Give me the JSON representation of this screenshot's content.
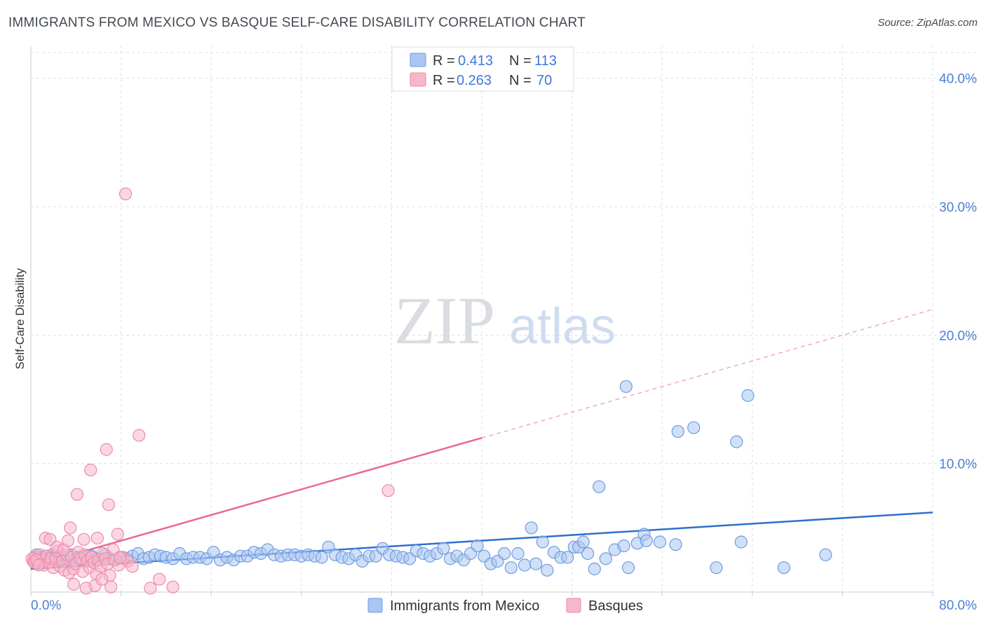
{
  "header": {
    "title": "IMMIGRANTS FROM MEXICO VS BASQUE SELF-CARE DISABILITY CORRELATION CHART",
    "source": "Source: ZipAtlas.com"
  },
  "watermark": {
    "zip": "ZIP",
    "atlas": "atlas"
  },
  "colors": {
    "blue_fill": "#a9c6f0",
    "blue_stroke": "#6f9be0",
    "blue_line": "#2f6fd0",
    "pink_fill": "#f7b7cb",
    "pink_stroke": "#ee8aa8",
    "pink_line": "#e8689a",
    "axis_text_blue": "#4a7fd4",
    "axis_text_pink": "#e8689a",
    "grid": "#dde1e6"
  },
  "stats_legend": {
    "rows": [
      {
        "r_label": "R = ",
        "r_value": "0.413",
        "n_label": "N = ",
        "n_value": "113"
      },
      {
        "r_label": "R = ",
        "r_value": "0.263",
        "n_label": "N = ",
        "n_value": "70"
      }
    ]
  },
  "chart_data": {
    "type": "scatter",
    "title": "IMMIGRANTS FROM MEXICO VS BASQUE SELF-CARE DISABILITY CORRELATION CHART",
    "xlabel": "",
    "ylabel": "Self-Care Disability",
    "xlim": [
      0,
      80
    ],
    "ylim": [
      0,
      42
    ],
    "x_tick_labels": [
      "0.0%",
      "80.0%"
    ],
    "y_ticks": [
      10,
      20,
      30,
      40
    ],
    "y_tick_labels": [
      "10.0%",
      "20.0%",
      "30.0%",
      "40.0%"
    ],
    "grid": true,
    "legend_position": "bottom",
    "series": [
      {
        "name": "Immigrants from Mexico",
        "r": 0.413,
        "n": 113,
        "trend": {
          "x0": 0,
          "y0": 1.8,
          "x1": 80,
          "y1": 6.2,
          "dashed_from": null
        },
        "points": [
          [
            0.3,
            2.6
          ],
          [
            0.5,
            2.9
          ],
          [
            0.7,
            2.4
          ],
          [
            0.9,
            2.7
          ],
          [
            1.1,
            2.5
          ],
          [
            1.3,
            2.8
          ],
          [
            1.5,
            2.3
          ],
          [
            1.7,
            2.6
          ],
          [
            1.9,
            2.9
          ],
          [
            2.1,
            2.4
          ],
          [
            2.3,
            2.7
          ],
          [
            2.5,
            2.5
          ],
          [
            2.7,
            2.8
          ],
          [
            3.0,
            2.6
          ],
          [
            3.3,
            2.3
          ],
          [
            3.6,
            2.9
          ],
          [
            3.9,
            2.5
          ],
          [
            4.2,
            2.7
          ],
          [
            4.6,
            2.6
          ],
          [
            5.0,
            2.4
          ],
          [
            5.4,
            2.8
          ],
          [
            5.8,
            2.6
          ],
          [
            6.2,
            2.5
          ],
          [
            6.6,
            2.9
          ],
          [
            7.0,
            2.6
          ],
          [
            7.5,
            2.5
          ],
          [
            8.0,
            2.7
          ],
          [
            8.5,
            2.6
          ],
          [
            9.0,
            2.8
          ],
          [
            9.5,
            3.0
          ],
          [
            10.0,
            2.6
          ],
          [
            10.5,
            2.7
          ],
          [
            11.0,
            2.9
          ],
          [
            11.5,
            2.8
          ],
          [
            12.0,
            2.7
          ],
          [
            12.6,
            2.6
          ],
          [
            13.2,
            3.0
          ],
          [
            13.8,
            2.6
          ],
          [
            14.4,
            2.7
          ],
          [
            15.0,
            2.7
          ],
          [
            15.6,
            2.6
          ],
          [
            16.2,
            3.1
          ],
          [
            16.8,
            2.5
          ],
          [
            17.4,
            2.7
          ],
          [
            18.0,
            2.5
          ],
          [
            18.6,
            2.8
          ],
          [
            19.2,
            2.8
          ],
          [
            19.8,
            3.1
          ],
          [
            20.4,
            3.0
          ],
          [
            21.0,
            3.3
          ],
          [
            21.6,
            2.9
          ],
          [
            22.2,
            2.8
          ],
          [
            22.8,
            2.9
          ],
          [
            23.4,
            2.9
          ],
          [
            24.0,
            2.8
          ],
          [
            24.6,
            2.9
          ],
          [
            25.2,
            2.8
          ],
          [
            25.8,
            2.7
          ],
          [
            26.4,
            3.5
          ],
          [
            27.0,
            2.9
          ],
          [
            27.6,
            2.7
          ],
          [
            28.2,
            2.6
          ],
          [
            28.8,
            2.9
          ],
          [
            29.4,
            2.4
          ],
          [
            30.0,
            2.8
          ],
          [
            30.6,
            2.8
          ],
          [
            31.2,
            3.4
          ],
          [
            31.8,
            2.9
          ],
          [
            32.4,
            2.8
          ],
          [
            33.0,
            2.7
          ],
          [
            33.6,
            2.6
          ],
          [
            34.2,
            3.2
          ],
          [
            34.8,
            3.0
          ],
          [
            35.4,
            2.8
          ],
          [
            36.0,
            3.0
          ],
          [
            36.6,
            3.4
          ],
          [
            37.2,
            2.6
          ],
          [
            37.8,
            2.8
          ],
          [
            38.4,
            2.5
          ],
          [
            39.0,
            3.0
          ],
          [
            39.6,
            3.6
          ],
          [
            40.2,
            2.8
          ],
          [
            40.8,
            2.2
          ],
          [
            41.4,
            2.4
          ],
          [
            42.0,
            3.0
          ],
          [
            42.6,
            1.9
          ],
          [
            43.2,
            3.0
          ],
          [
            43.8,
            2.1
          ],
          [
            44.4,
            5.0
          ],
          [
            44.8,
            2.2
          ],
          [
            45.4,
            3.9
          ],
          [
            45.8,
            1.7
          ],
          [
            46.4,
            3.1
          ],
          [
            47.0,
            2.7
          ],
          [
            47.6,
            2.7
          ],
          [
            48.2,
            3.5
          ],
          [
            48.6,
            3.5
          ],
          [
            49.0,
            3.9
          ],
          [
            49.4,
            3.0
          ],
          [
            50.0,
            1.8
          ],
          [
            50.4,
            8.2
          ],
          [
            51.0,
            2.6
          ],
          [
            51.8,
            3.3
          ],
          [
            52.6,
            3.6
          ],
          [
            52.8,
            16.0
          ],
          [
            53.0,
            1.9
          ],
          [
            53.8,
            3.8
          ],
          [
            54.4,
            4.5
          ],
          [
            54.6,
            4.0
          ],
          [
            55.8,
            3.9
          ],
          [
            57.2,
            3.7
          ],
          [
            57.4,
            12.5
          ],
          [
            58.8,
            12.8
          ],
          [
            60.8,
            1.9
          ],
          [
            62.6,
            11.7
          ],
          [
            63.0,
            3.9
          ],
          [
            63.6,
            15.3
          ],
          [
            66.8,
            1.9
          ],
          [
            70.5,
            2.9
          ]
        ]
      },
      {
        "name": "Basques",
        "r": 0.263,
        "n": 70,
        "trend": {
          "x0": 0,
          "y0": 2.0,
          "x1": 80,
          "y1": 22.0,
          "dashed_from": 40
        },
        "points": [
          [
            0.2,
            2.4
          ],
          [
            0.4,
            2.7
          ],
          [
            0.6,
            2.2
          ],
          [
            0.8,
            2.9
          ],
          [
            1.0,
            2.5
          ],
          [
            1.2,
            2.1
          ],
          [
            1.4,
            2.8
          ],
          [
            1.6,
            2.3
          ],
          [
            1.8,
            2.6
          ],
          [
            2.0,
            1.9
          ],
          [
            2.2,
            2.6
          ],
          [
            2.4,
            3.2
          ],
          [
            2.6,
            2.0
          ],
          [
            2.8,
            2.4
          ],
          [
            3.0,
            1.7
          ],
          [
            3.2,
            2.9
          ],
          [
            3.4,
            1.5
          ],
          [
            3.6,
            2.7
          ],
          [
            3.8,
            1.8
          ],
          [
            4.0,
            2.2
          ],
          [
            4.2,
            3.1
          ],
          [
            4.4,
            2.6
          ],
          [
            4.6,
            1.6
          ],
          [
            4.8,
            2.9
          ],
          [
            5.0,
            2.4
          ],
          [
            5.2,
            1.9
          ],
          [
            5.4,
            2.7
          ],
          [
            5.6,
            2.3
          ],
          [
            5.8,
            1.4
          ],
          [
            6.0,
            2.5
          ],
          [
            6.2,
            2.0
          ],
          [
            6.4,
            3.0
          ],
          [
            6.6,
            2.6
          ],
          [
            6.8,
            2.2
          ],
          [
            7.0,
            1.3
          ],
          [
            7.4,
            2.5
          ],
          [
            7.8,
            2.1
          ],
          [
            8.2,
            2.7
          ],
          [
            8.6,
            2.4
          ],
          [
            9.0,
            2.0
          ],
          [
            1.3,
            4.2
          ],
          [
            1.7,
            4.1
          ],
          [
            2.3,
            3.5
          ],
          [
            2.9,
            3.3
          ],
          [
            3.3,
            4.0
          ],
          [
            3.5,
            5.0
          ],
          [
            3.8,
            0.6
          ],
          [
            4.1,
            7.6
          ],
          [
            4.7,
            4.1
          ],
          [
            4.9,
            0.3
          ],
          [
            5.3,
            9.5
          ],
          [
            5.7,
            0.5
          ],
          [
            5.9,
            4.2
          ],
          [
            6.3,
            1.0
          ],
          [
            6.7,
            11.1
          ],
          [
            6.9,
            6.8
          ],
          [
            7.1,
            0.4
          ],
          [
            7.3,
            3.3
          ],
          [
            7.7,
            4.5
          ],
          [
            7.9,
            2.7
          ],
          [
            8.4,
            31.0
          ],
          [
            9.6,
            12.2
          ],
          [
            10.6,
            0.3
          ],
          [
            11.4,
            1.0
          ],
          [
            12.6,
            0.4
          ],
          [
            31.7,
            7.9
          ],
          [
            0.1,
            2.6
          ],
          [
            0.3,
            2.3
          ],
          [
            0.5,
            2.5
          ],
          [
            0.7,
            2.1
          ]
        ]
      }
    ]
  },
  "legend": {
    "items": [
      {
        "label": "Immigrants from Mexico"
      },
      {
        "label": "Basques"
      }
    ]
  }
}
